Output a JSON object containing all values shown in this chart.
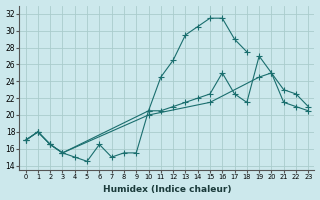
{
  "xlabel": "Humidex (Indice chaleur)",
  "bg_color": "#cce8ec",
  "grid_color": "#aacccc",
  "line_color": "#1a6e6e",
  "xlim": [
    -0.5,
    23.5
  ],
  "ylim": [
    13.5,
    33
  ],
  "yticks": [
    14,
    16,
    18,
    20,
    22,
    24,
    26,
    28,
    30,
    32
  ],
  "xtick_labels": [
    "0",
    "1",
    "2",
    "3",
    "4",
    "5",
    "6",
    "7",
    "8",
    "9",
    "10",
    "11",
    "12",
    "13",
    "14",
    "15",
    "16",
    "17",
    "18",
    "19",
    "20",
    "21",
    "22",
    "23"
  ],
  "line1_x": [
    0,
    1,
    2,
    3,
    4,
    5,
    6,
    7,
    8,
    9,
    10,
    11,
    12,
    13,
    14,
    15,
    16,
    17,
    18
  ],
  "line1_y": [
    17.0,
    18.0,
    16.5,
    15.5,
    15.0,
    14.5,
    16.5,
    15.0,
    15.5,
    15.5,
    20.5,
    24.5,
    26.5,
    29.5,
    30.5,
    31.5,
    31.5,
    29.0,
    27.5
  ],
  "line2_x": [
    0,
    1,
    2,
    3,
    10,
    11,
    12,
    13,
    14,
    15,
    16,
    17,
    18,
    19,
    20,
    21,
    22,
    23
  ],
  "line2_y": [
    17.0,
    18.0,
    16.5,
    15.5,
    20.5,
    20.5,
    21.0,
    21.5,
    22.0,
    22.5,
    25.0,
    22.5,
    21.5,
    27.0,
    25.0,
    23.0,
    22.5,
    21.0
  ],
  "line3_x": [
    0,
    1,
    2,
    3,
    10,
    15,
    19,
    20,
    21,
    22,
    23
  ],
  "line3_y": [
    17.0,
    18.0,
    16.5,
    15.5,
    20.0,
    21.5,
    24.5,
    25.0,
    21.5,
    21.0,
    20.5
  ]
}
